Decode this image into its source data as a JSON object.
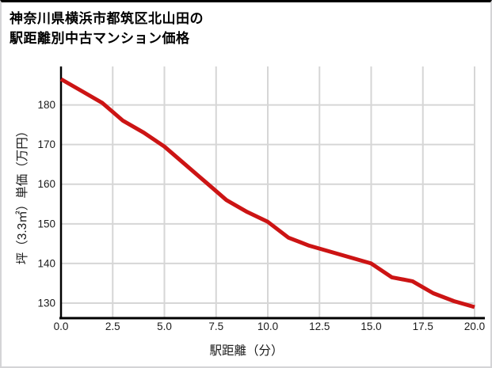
{
  "title": {
    "line1": "神奈川県横浜市都筑区北山田の",
    "line2": "駅距離別中古マンション価格"
  },
  "chart_data": {
    "type": "line",
    "title": "神奈川県横浜市都筑区北山田の駅距離別中古マンション価格",
    "xlabel": "駅距離（分）",
    "ylabel": "坪（3.3㎡）単価（万円）",
    "x": [
      0,
      1,
      2,
      3,
      4,
      5,
      6,
      7,
      8,
      9,
      10,
      11,
      12,
      13,
      14,
      15,
      16,
      17,
      18,
      19,
      20
    ],
    "series": [
      {
        "name": "坪単価（万円）",
        "values": [
          186.5,
          183.5,
          180.5,
          176,
          173,
          169.5,
          165,
          160.5,
          156,
          153,
          150.5,
          146.5,
          144.5,
          143,
          141.5,
          140,
          136.5,
          135.5,
          132.5,
          130.5,
          129
        ]
      }
    ],
    "xlim": [
      0,
      20
    ],
    "ylim": [
      126.2,
      189.7
    ],
    "x_tick_labels": [
      "0.0",
      "2.5",
      "5.0",
      "7.5",
      "10.0",
      "12.5",
      "15.0",
      "17.5",
      "20.0"
    ],
    "x_tick_values": [
      0,
      2.5,
      5,
      7.5,
      10,
      12.5,
      15,
      17.5,
      20
    ],
    "y_tick_labels": [
      "130",
      "140",
      "150",
      "160",
      "170",
      "180"
    ],
    "y_tick_values": [
      130,
      140,
      150,
      160,
      170,
      180
    ],
    "grid": true,
    "legend": "none"
  },
  "colors": {
    "line": "#cc1414",
    "grid": "#d6d6d6",
    "spine": "#000000",
    "tick_text": "#1a1a1a",
    "label_text": "#1a1a1a"
  }
}
